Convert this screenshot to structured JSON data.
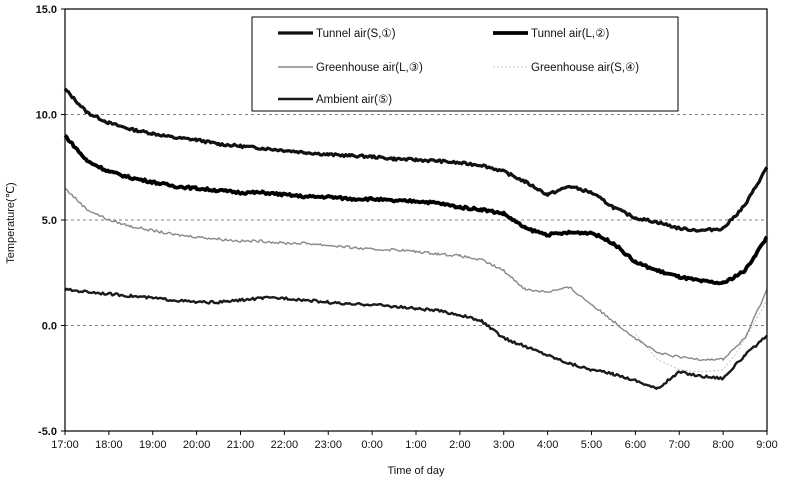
{
  "chart_data": {
    "type": "line",
    "xlabel": "Time of day",
    "ylabel": "Temperature(℃)",
    "x_tick_labels": [
      "17:00",
      "18:00",
      "19:00",
      "20:00",
      "21:00",
      "22:00",
      "23:00",
      "0:00",
      "1:00",
      "2:00",
      "3:00",
      "4:00",
      "5:00",
      "6:00",
      "7:00",
      "8:00",
      "9:00"
    ],
    "x_hours": [
      0,
      1,
      2,
      3,
      4,
      5,
      6,
      7,
      8,
      9,
      10,
      11,
      12,
      13,
      14,
      15,
      16
    ],
    "xlim": [
      0,
      16
    ],
    "ylim": [
      -5.0,
      15.0
    ],
    "y_ticks": [
      -5.0,
      0.0,
      5.0,
      10.0,
      15.0
    ],
    "y_tick_labels": [
      "-5.0",
      "0.0",
      "5.0",
      "10.0",
      "15.0"
    ],
    "grid": "horizontal dashed",
    "legend_position": "top-center",
    "series": [
      {
        "name": "Tunnel air(S,①)",
        "color": "#111111",
        "width": 3.2,
        "dash": "",
        "x": [
          0,
          0.5,
          1,
          1.5,
          2,
          2.5,
          3,
          3.5,
          4,
          4.5,
          5,
          5.5,
          6,
          6.5,
          7,
          7.5,
          8,
          8.5,
          9,
          9.5,
          10,
          10.5,
          11,
          11.5,
          12,
          12.5,
          13,
          13.5,
          14,
          14.5,
          15,
          15.5,
          16
        ],
        "y": [
          11.2,
          10.1,
          9.6,
          9.3,
          9.1,
          8.9,
          8.8,
          8.6,
          8.5,
          8.4,
          8.3,
          8.2,
          8.1,
          8.05,
          8.0,
          7.9,
          7.85,
          7.8,
          7.7,
          7.6,
          7.3,
          6.8,
          6.2,
          6.6,
          6.3,
          5.6,
          5.1,
          4.9,
          4.6,
          4.5,
          4.6,
          5.7,
          7.5
        ]
      },
      {
        "name": "Tunnel air(L,②)",
        "color": "#000000",
        "width": 3.8,
        "dash": "",
        "x": [
          0,
          0.5,
          1,
          1.5,
          2,
          2.5,
          3,
          3.5,
          4,
          4.5,
          5,
          5.5,
          6,
          6.5,
          7,
          7.5,
          8,
          8.5,
          9,
          9.5,
          10,
          10.5,
          11,
          11.5,
          12,
          12.5,
          13,
          13.5,
          14,
          14.5,
          15,
          15.5,
          16
        ],
        "y": [
          9.0,
          7.8,
          7.3,
          7.0,
          6.8,
          6.6,
          6.5,
          6.4,
          6.3,
          6.3,
          6.2,
          6.1,
          6.1,
          6.0,
          6.0,
          5.9,
          5.9,
          5.8,
          5.6,
          5.5,
          5.3,
          4.6,
          4.3,
          4.4,
          4.4,
          3.9,
          3.0,
          2.6,
          2.3,
          2.1,
          2.0,
          2.6,
          4.2
        ]
      },
      {
        "name": "Greenhouse air(L,③)",
        "color": "#888888",
        "width": 1.4,
        "dash": "",
        "x": [
          0,
          0.5,
          1,
          1.5,
          2,
          2.5,
          3,
          3.5,
          4,
          4.5,
          5,
          5.5,
          6,
          6.5,
          7,
          7.5,
          8,
          8.5,
          9,
          9.5,
          10,
          10.5,
          11,
          11.5,
          12,
          12.5,
          13,
          13.5,
          14,
          14.5,
          15,
          15.5,
          16
        ],
        "y": [
          6.5,
          5.5,
          5.0,
          4.7,
          4.5,
          4.3,
          4.2,
          4.1,
          4.0,
          4.0,
          3.9,
          3.9,
          3.8,
          3.7,
          3.6,
          3.6,
          3.5,
          3.4,
          3.3,
          3.1,
          2.6,
          1.7,
          1.6,
          1.8,
          1.0,
          0.2,
          -0.6,
          -1.3,
          -1.5,
          -1.6,
          -1.6,
          -0.6,
          1.7
        ]
      },
      {
        "name": "Greenhouse air(S,④)",
        "color": "#c4c4c4",
        "width": 1.0,
        "dash": "2,2",
        "x": [
          13,
          13.5,
          14,
          14.5,
          15,
          15.3,
          15.6,
          16
        ],
        "y": [
          -0.4,
          -1.6,
          -2.1,
          -2.2,
          -2.1,
          -1.3,
          -0.3,
          1.2
        ]
      },
      {
        "name": "Ambient air(⑤)",
        "color": "#1a1a1a",
        "width": 2.4,
        "dash": "",
        "x": [
          0,
          0.5,
          1,
          1.5,
          2,
          2.5,
          3,
          3.5,
          4,
          4.5,
          5,
          5.5,
          6,
          6.5,
          7,
          7.5,
          8,
          8.5,
          9,
          9.5,
          10,
          10.5,
          11,
          11.5,
          12,
          12.5,
          13,
          13.5,
          14,
          14.5,
          15,
          15.5,
          16
        ],
        "y": [
          1.7,
          1.6,
          1.5,
          1.4,
          1.3,
          1.2,
          1.1,
          1.1,
          1.2,
          1.3,
          1.3,
          1.2,
          1.1,
          1.0,
          1.0,
          0.9,
          0.8,
          0.7,
          0.5,
          0.2,
          -0.6,
          -1.0,
          -1.4,
          -1.8,
          -2.1,
          -2.3,
          -2.6,
          -3.0,
          -2.2,
          -2.4,
          -2.5,
          -1.4,
          -0.5
        ]
      }
    ]
  }
}
